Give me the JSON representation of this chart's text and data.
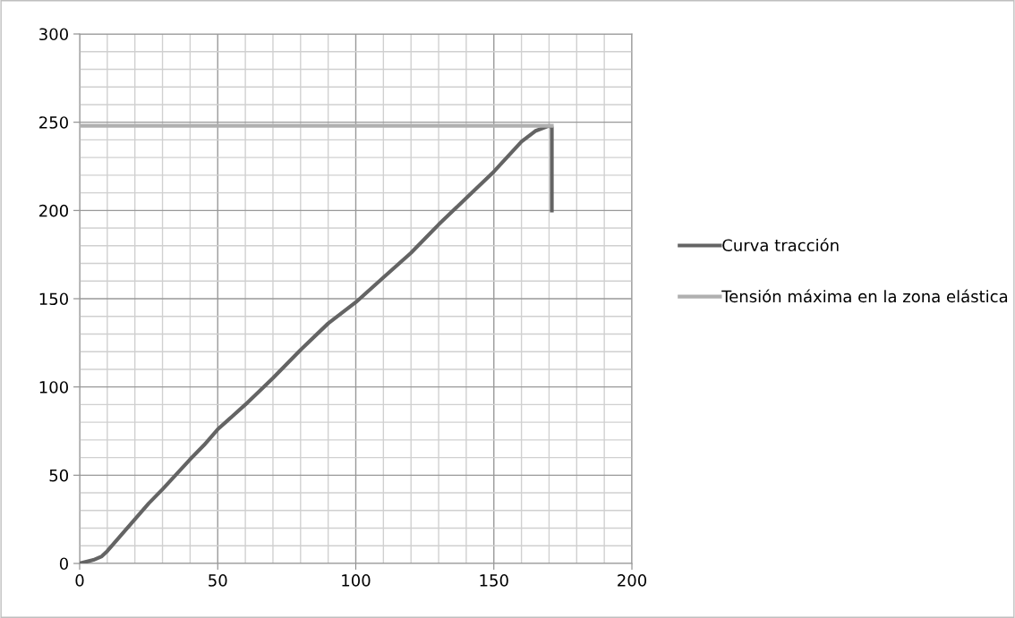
{
  "chart_data": {
    "type": "line",
    "x": [
      0,
      5,
      8,
      10,
      15,
      20,
      25,
      30,
      40,
      45,
      50,
      55,
      60,
      70,
      80,
      90,
      100,
      110,
      120,
      130,
      140,
      150,
      160,
      165,
      170,
      171,
      171
    ],
    "series": [
      {
        "name": "Curva tracción",
        "color": "#646464",
        "values": [
          0,
          2,
          4,
          7,
          16,
          25,
          34,
          42,
          59,
          67,
          76,
          83,
          90,
          105,
          121,
          136,
          148,
          162,
          176,
          192,
          207,
          222,
          239,
          245,
          248,
          247,
          200
        ]
      },
      {
        "name": "Tensión máxima en la zona elástica",
        "color": "#b0b0b0",
        "x": [
          0,
          171
        ],
        "values": [
          248,
          248
        ]
      }
    ],
    "xlim": [
      0,
      200
    ],
    "xticks": [
      0,
      50,
      100,
      150,
      200
    ],
    "ylim": [
      0,
      300
    ],
    "yticks": [
      0,
      50,
      100,
      150,
      200,
      250,
      300
    ],
    "grid": true,
    "legend": "right",
    "marker": "none",
    "line_style": "solid"
  }
}
